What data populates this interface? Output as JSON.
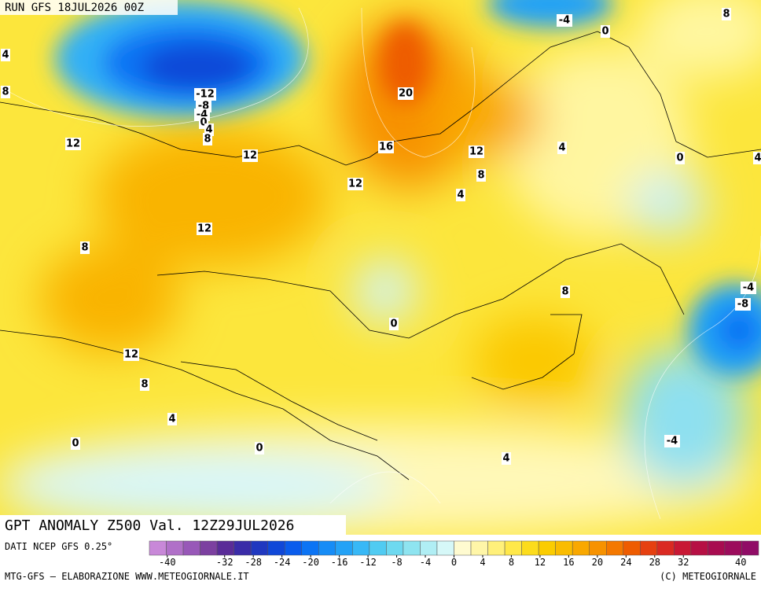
{
  "header": {
    "run": "RUN GFS 18JUL2026 00Z"
  },
  "title": "GPT ANOMALY Z500 Val. 12Z29JUL2026",
  "source": "DATI NCEP GFS 0.25°",
  "credit_left": "MTG-GFS — ELABORAZIONE WWW.METEOGIORNALE.IT",
  "credit_right": "(C) METEOGIORNALE",
  "colorbar": {
    "lim": [
      -42.5,
      42.5
    ],
    "ticks": [
      -40,
      -32,
      -28,
      -24,
      -20,
      -16,
      -12,
      -8,
      -4,
      0,
      4,
      8,
      12,
      16,
      20,
      24,
      28,
      32,
      40
    ],
    "colors": [
      "#c888d8",
      "#b070c8",
      "#9858b8",
      "#7c40a0",
      "#5a2c98",
      "#3a2ca8",
      "#2038c0",
      "#1048d8",
      "#0a5cec",
      "#0c74f4",
      "#168cf6",
      "#24a2f6",
      "#38b8f6",
      "#50cbf2",
      "#6ed9f0",
      "#8ee4f0",
      "#b0eef4",
      "#d6f8f8",
      "#fffbd0",
      "#fff6a8",
      "#fff07a",
      "#ffe84a",
      "#fcdc1c",
      "#fbcc00",
      "#fabc00",
      "#f9a800",
      "#f79200",
      "#f47800",
      "#ee5c00",
      "#e64010",
      "#da2a22",
      "#c81834",
      "#b61044",
      "#a80c50",
      "#9c0c5c",
      "#900c66"
    ]
  },
  "contour_labels": [
    -4,
    8,
    0,
    4,
    8,
    -12,
    -8,
    -4,
    0,
    4,
    8,
    20,
    12,
    16,
    12,
    12,
    4,
    0,
    4,
    8,
    12,
    4,
    12,
    8,
    -4,
    8,
    -8,
    0,
    12,
    8,
    4,
    0,
    0,
    -4,
    4
  ]
}
